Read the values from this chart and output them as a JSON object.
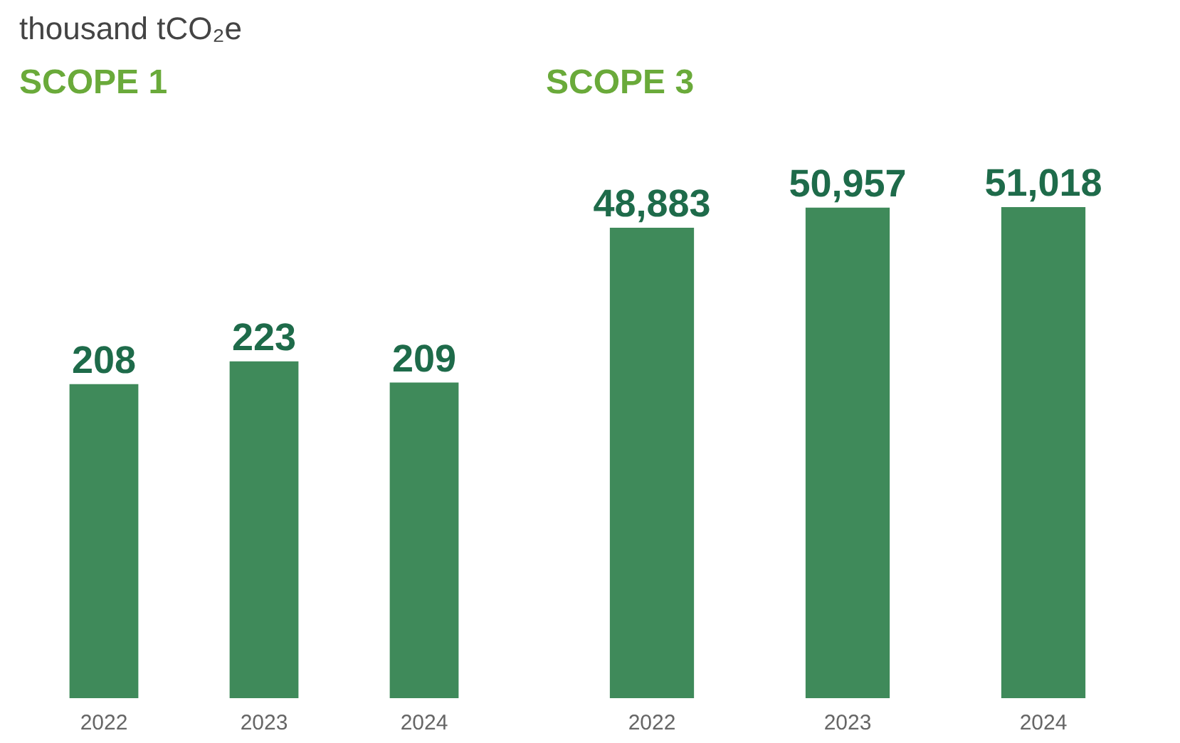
{
  "chart_data": [
    {
      "type": "bar",
      "title": "SCOPE 1",
      "annotations": [
        "thousand tCO₂e"
      ],
      "categories": [
        "2022",
        "2023",
        "2024"
      ],
      "values": [
        208,
        223,
        209
      ],
      "color": "#3f8a5a",
      "data_labels": true
    },
    {
      "type": "bar",
      "title": "SCOPE 3",
      "categories": [
        "2022",
        "2023",
        "2024"
      ],
      "values": [
        48883,
        50957,
        51018
      ],
      "value_labels": [
        "48,883",
        "50,957",
        "51,018"
      ],
      "color": "#3f8a5a"
    }
  ]
}
